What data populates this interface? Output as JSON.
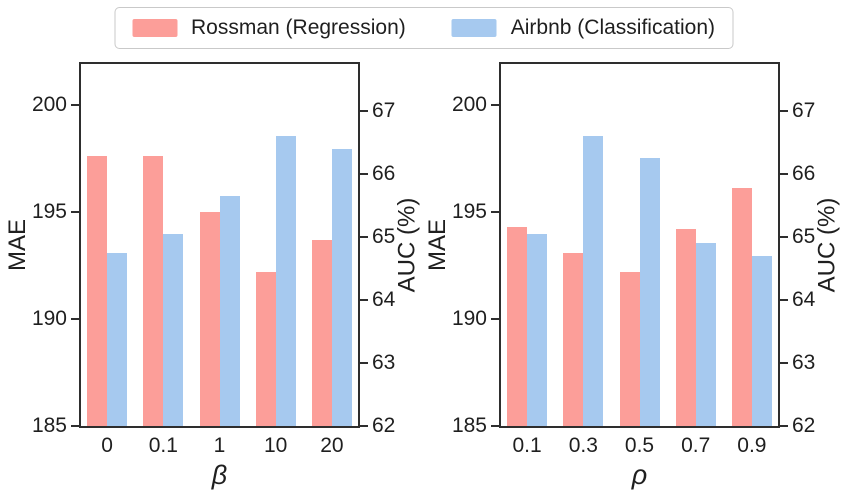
{
  "figure": {
    "background": "#ffffff",
    "spine_color": "#2e2e2e",
    "text_color": "#1f1f1f"
  },
  "legend": {
    "items": [
      {
        "label": "Rossman (Regression)",
        "color": "#FC9E99"
      },
      {
        "label": "Airbnb (Classification)",
        "color": "#A6C9EF"
      }
    ]
  },
  "chart_data": [
    {
      "type": "bar",
      "title": "",
      "xlabel": "β",
      "ylabel_left": "MAE",
      "ylabel_right": "AUC (%)",
      "categories": [
        "0",
        "0.1",
        "1",
        "10",
        "20"
      ],
      "series": [
        {
          "name": "Rossman (Regression)",
          "axis": "left",
          "metric": "MAE",
          "color": "#FC9E99",
          "values": [
            197.6,
            197.6,
            195.0,
            192.2,
            193.7
          ]
        },
        {
          "name": "Airbnb (Classification)",
          "axis": "right",
          "metric": "AUC (%)",
          "color": "#A6C9EF",
          "values": [
            64.75,
            65.05,
            65.65,
            66.6,
            66.4
          ]
        }
      ],
      "left_axis": {
        "label": "MAE",
        "ticks": [
          185,
          190,
          195,
          200
        ],
        "lim": [
          185,
          201.9
        ]
      },
      "right_axis": {
        "label": "AUC (%)",
        "ticks": [
          62,
          63,
          64,
          65,
          66,
          67
        ],
        "lim": [
          62,
          67.75
        ]
      },
      "grid": false,
      "legend_position": "top-center-shared"
    },
    {
      "type": "bar",
      "title": "",
      "xlabel": "ρ",
      "ylabel_left": "MAE",
      "ylabel_right": "AUC (%)",
      "categories": [
        "0.1",
        "0.3",
        "0.5",
        "0.7",
        "0.9"
      ],
      "series": [
        {
          "name": "Rossman (Regression)",
          "axis": "left",
          "metric": "MAE",
          "color": "#FC9E99",
          "values": [
            194.3,
            193.1,
            192.2,
            194.2,
            196.1
          ]
        },
        {
          "name": "Airbnb (Classification)",
          "axis": "right",
          "metric": "AUC (%)",
          "color": "#A6C9EF",
          "values": [
            65.05,
            66.6,
            66.25,
            64.9,
            64.7
          ]
        }
      ],
      "left_axis": {
        "label": "MAE",
        "ticks": [
          185,
          190,
          195,
          200
        ],
        "lim": [
          185,
          201.9
        ]
      },
      "right_axis": {
        "label": "AUC (%)",
        "ticks": [
          62,
          63,
          64,
          65,
          66,
          67
        ],
        "lim": [
          62,
          67.75
        ]
      },
      "grid": false,
      "legend_position": "top-center-shared"
    }
  ]
}
